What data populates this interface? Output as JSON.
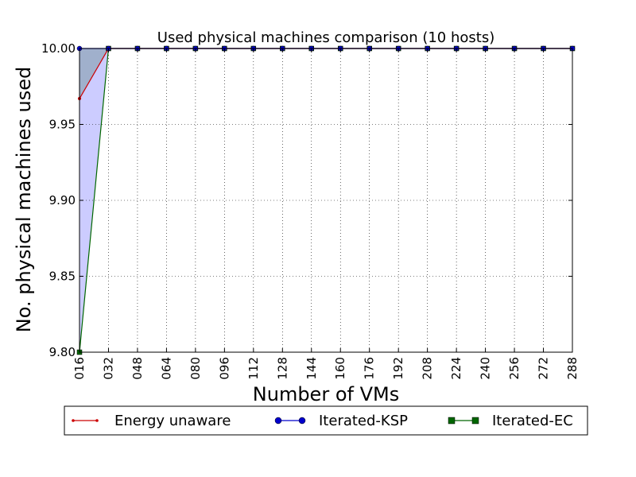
{
  "chart_data": {
    "type": "line",
    "title": "Used physical machines comparison (10 hosts)",
    "xlabel": "Number of VMs",
    "ylabel": "No. physical machines used",
    "categories": [
      "016",
      "032",
      "048",
      "064",
      "080",
      "096",
      "112",
      "128",
      "144",
      "160",
      "176",
      "192",
      "208",
      "224",
      "240",
      "256",
      "272",
      "288"
    ],
    "x": [
      16,
      32,
      48,
      64,
      80,
      96,
      112,
      128,
      144,
      160,
      176,
      192,
      208,
      224,
      240,
      256,
      272,
      288
    ],
    "xlim": [
      16,
      288
    ],
    "ylim": [
      9.8,
      10.0
    ],
    "yticks": [
      "9.80",
      "9.85",
      "9.90",
      "9.95",
      "10.00"
    ],
    "grid": true,
    "legend_placement": "below",
    "series": [
      {
        "name": "Energy unaware",
        "color": "#cc0000",
        "marker": "dot",
        "values": [
          9.967,
          10,
          10,
          10,
          10,
          10,
          10,
          10,
          10,
          10,
          10,
          10,
          10,
          10,
          10,
          10,
          10,
          10
        ]
      },
      {
        "name": "Iterated-KSP",
        "color": "#0000cc",
        "marker": "circle",
        "values": [
          10,
          10,
          10,
          10,
          10,
          10,
          10,
          10,
          10,
          10,
          10,
          10,
          10,
          10,
          10,
          10,
          10,
          10
        ]
      },
      {
        "name": "Iterated-EC",
        "color": "#006600",
        "marker": "square",
        "values": [
          9.8,
          10,
          10,
          10,
          10,
          10,
          10,
          10,
          10,
          10,
          10,
          10,
          10,
          10,
          10,
          10,
          10,
          10
        ]
      }
    ],
    "fill_color": "#ccccff"
  }
}
